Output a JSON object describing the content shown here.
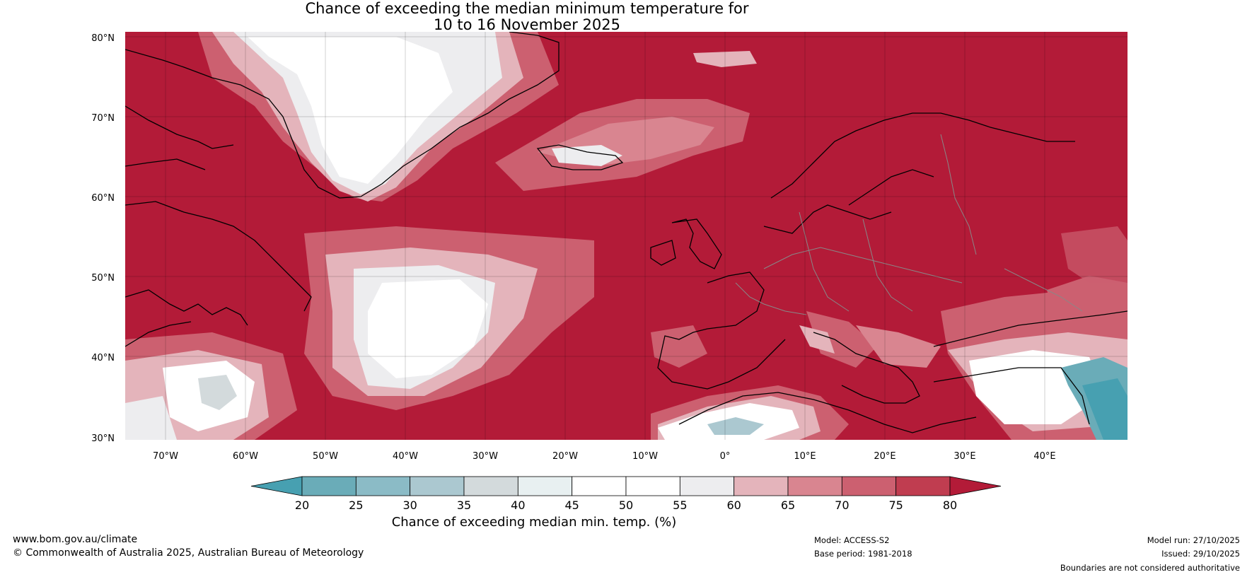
{
  "title_line1": "Chance of exceeding the median minimum temperature for",
  "title_line2": "10 to 16 November 2025",
  "lat_labels": [
    "80°N",
    "70°N",
    "60°N",
    "50°N",
    "40°N",
    "30°N"
  ],
  "lon_labels": [
    "70°W",
    "60°W",
    "50°W",
    "40°W",
    "30°W",
    "20°W",
    "10°W",
    "0°",
    "10°E",
    "20°E",
    "30°E",
    "40°E"
  ],
  "colorbar": {
    "ticks": [
      "20",
      "25",
      "30",
      "35",
      "40",
      "45",
      "50",
      "55",
      "60",
      "65",
      "70",
      "75",
      "80"
    ],
    "colors": [
      "#47a0b1",
      "#6aacb8",
      "#8bbbc6",
      "#abc8d0",
      "#d3dadc",
      "#e8f0f1",
      "#ffffff",
      "#ffffff",
      "#ededef",
      "#e4b4bb",
      "#d98590",
      "#cc6070",
      "#c03d50",
      "#b31b38"
    ],
    "label": "Chance of exceeding median min. temp. (%)"
  },
  "colors": {
    "high": "#b31b38",
    "band75": "#c03d50",
    "band70": "#cc6070",
    "band65": "#d98590",
    "band60": "#e4b4bb",
    "neutral": "#ededef",
    "white": "#ffffff",
    "low": "#47a0b1"
  },
  "footer": {
    "website": "www.bom.gov.au/climate",
    "copyright": "© Commonwealth of Australia 2025, Australian Bureau of Meteorology",
    "model": "Model: ACCESS-S2",
    "base_period": "Base period: 1981-2018",
    "model_run": "Model run: 27/10/2025",
    "issued": "Issued: 29/10/2025",
    "disclaimer": "Boundaries are not considered authoritative"
  }
}
